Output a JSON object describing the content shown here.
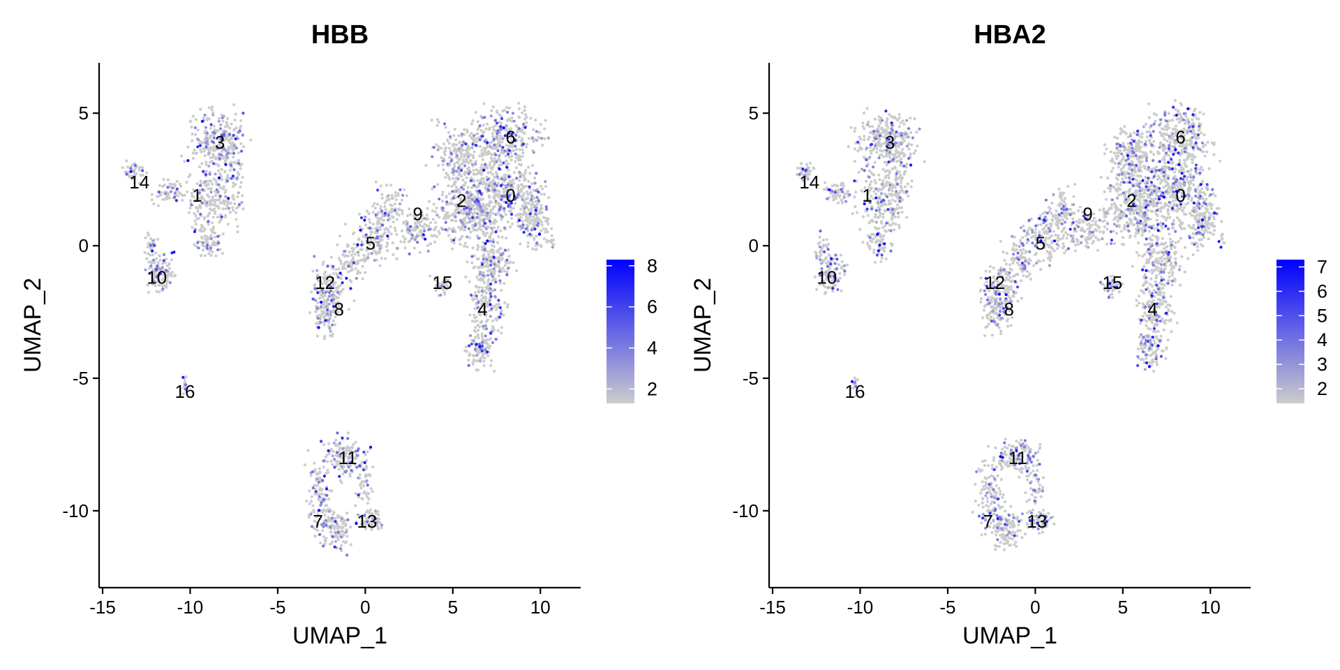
{
  "colors": {
    "low": "#cccccc",
    "high": "#0000ff",
    "axis": "#000000"
  },
  "chart_data": [
    {
      "type": "scatter",
      "title": "HBB",
      "xlabel": "UMAP_1",
      "ylabel": "UMAP_2",
      "xlim": [
        -15.2,
        12.3
      ],
      "ylim": [
        -12.9,
        6.9
      ],
      "xticks": [
        -15,
        -10,
        -5,
        0,
        5,
        10
      ],
      "xtick_labels": [
        "-15",
        "-10",
        "-5",
        "0",
        "5",
        "10"
      ],
      "yticks": [
        -10,
        -5,
        0,
        5
      ],
      "ytick_labels": [
        "-10",
        "-5",
        "0",
        "5"
      ],
      "grid": false,
      "color_scale": {
        "min": 1.3,
        "max": 8.3,
        "ticks": [
          2,
          4,
          6,
          8
        ],
        "tick_labels": [
          "2",
          "4",
          "6",
          "8"
        ],
        "placement": "right"
      },
      "clusters": [
        {
          "label": "0",
          "x": 8.3,
          "y": 1.9
        },
        {
          "label": "1",
          "x": -9.6,
          "y": 1.9
        },
        {
          "label": "2",
          "x": 5.5,
          "y": 1.7
        },
        {
          "label": "3",
          "x": -8.3,
          "y": 3.9
        },
        {
          "label": "4",
          "x": 6.7,
          "y": -2.4
        },
        {
          "label": "5",
          "x": 0.3,
          "y": 0.1
        },
        {
          "label": "6",
          "x": 8.3,
          "y": 4.1
        },
        {
          "label": "7",
          "x": -2.7,
          "y": -10.4
        },
        {
          "label": "8",
          "x": -1.5,
          "y": -2.4
        },
        {
          "label": "9",
          "x": 3.0,
          "y": 1.2
        },
        {
          "label": "10",
          "x": -11.9,
          "y": -1.2
        },
        {
          "label": "11",
          "x": -1.0,
          "y": -8.0
        },
        {
          "label": "12",
          "x": -2.3,
          "y": -1.4
        },
        {
          "label": "13",
          "x": 0.1,
          "y": -10.4
        },
        {
          "label": "14",
          "x": -12.9,
          "y": 2.4
        },
        {
          "label": "15",
          "x": 4.4,
          "y": -1.4
        },
        {
          "label": "16",
          "x": -10.3,
          "y": -5.5
        }
      ]
    },
    {
      "type": "scatter",
      "title": "HBA2",
      "xlabel": "UMAP_1",
      "ylabel": "UMAP_2",
      "xlim": [
        -15.2,
        12.3
      ],
      "ylim": [
        -12.9,
        6.9
      ],
      "xticks": [
        -15,
        -10,
        -5,
        0,
        5,
        10
      ],
      "xtick_labels": [
        "-15",
        "-10",
        "-5",
        "0",
        "5",
        "10"
      ],
      "yticks": [
        -10,
        -5,
        0,
        5
      ],
      "ytick_labels": [
        "-10",
        "-5",
        "0",
        "5"
      ],
      "grid": false,
      "color_scale": {
        "min": 1.4,
        "max": 7.3,
        "ticks": [
          2,
          3,
          4,
          5,
          6,
          7
        ],
        "tick_labels": [
          "2",
          "3",
          "4",
          "5",
          "6",
          "7"
        ],
        "placement": "right"
      },
      "clusters": [
        {
          "label": "0",
          "x": 8.3,
          "y": 1.9
        },
        {
          "label": "1",
          "x": -9.6,
          "y": 1.9
        },
        {
          "label": "2",
          "x": 5.5,
          "y": 1.7
        },
        {
          "label": "3",
          "x": -8.3,
          "y": 3.9
        },
        {
          "label": "4",
          "x": 6.7,
          "y": -2.4
        },
        {
          "label": "5",
          "x": 0.3,
          "y": 0.1
        },
        {
          "label": "6",
          "x": 8.3,
          "y": 4.1
        },
        {
          "label": "7",
          "x": -2.7,
          "y": -10.4
        },
        {
          "label": "8",
          "x": -1.5,
          "y": -2.4
        },
        {
          "label": "9",
          "x": 3.0,
          "y": 1.2
        },
        {
          "label": "10",
          "x": -11.9,
          "y": -1.2
        },
        {
          "label": "11",
          "x": -1.0,
          "y": -8.0
        },
        {
          "label": "12",
          "x": -2.3,
          "y": -1.4
        },
        {
          "label": "13",
          "x": 0.1,
          "y": -10.4
        },
        {
          "label": "14",
          "x": -12.9,
          "y": 2.4
        },
        {
          "label": "15",
          "x": 4.4,
          "y": -1.4
        },
        {
          "label": "16",
          "x": -10.3,
          "y": -5.5
        }
      ]
    }
  ]
}
